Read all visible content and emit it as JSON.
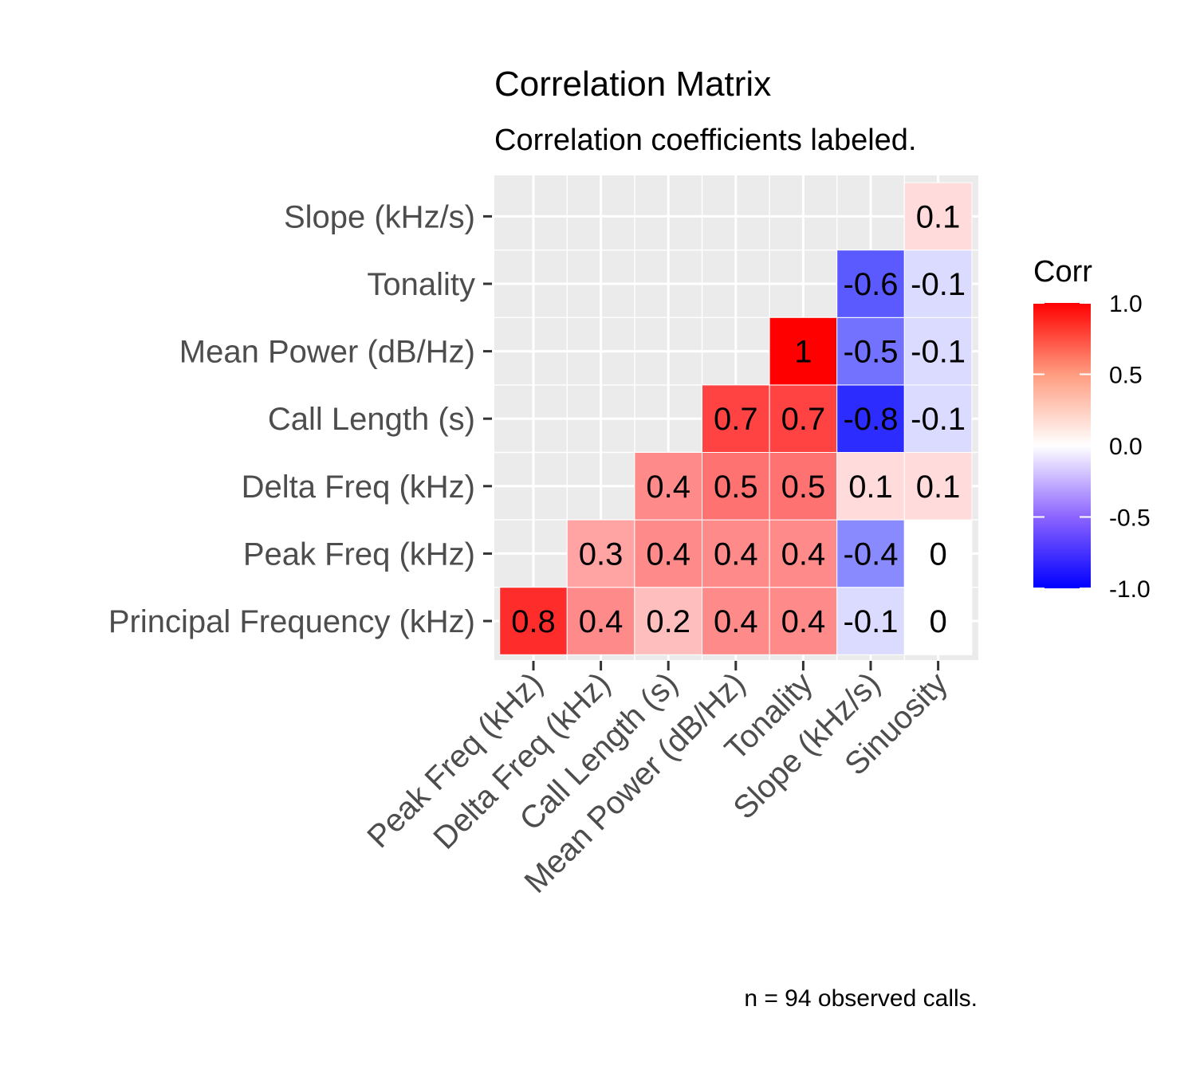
{
  "chart_data": {
    "type": "heatmap",
    "title": "Correlation Matrix",
    "subtitle": "Correlation coefficients labeled.",
    "caption": "n = 94 observed calls.",
    "x_categories": [
      "Peak Freq (kHz)",
      "Delta Freq (kHz)",
      "Call Length (s)",
      "Mean Power (dB/Hz)",
      "Tonality",
      "Slope (kHz/s)",
      "Sinuosity"
    ],
    "y_categories": [
      "Principal Frequency (kHz)",
      "Peak Freq (kHz)",
      "Delta Freq (kHz)",
      "Call Length (s)",
      "Mean Power (dB/Hz)",
      "Tonality",
      "Slope (kHz/s)"
    ],
    "cells": [
      {
        "x": "Peak Freq (kHz)",
        "y": "Principal Frequency (kHz)",
        "value": 0.8,
        "label": "0.8"
      },
      {
        "x": "Delta Freq (kHz)",
        "y": "Principal Frequency (kHz)",
        "value": 0.4,
        "label": "0.4"
      },
      {
        "x": "Call Length (s)",
        "y": "Principal Frequency (kHz)",
        "value": 0.2,
        "label": "0.2"
      },
      {
        "x": "Mean Power (dB/Hz)",
        "y": "Principal Frequency (kHz)",
        "value": 0.4,
        "label": "0.4"
      },
      {
        "x": "Tonality",
        "y": "Principal Frequency (kHz)",
        "value": 0.4,
        "label": "0.4"
      },
      {
        "x": "Slope (kHz/s)",
        "y": "Principal Frequency (kHz)",
        "value": -0.1,
        "label": "-0.1"
      },
      {
        "x": "Sinuosity",
        "y": "Principal Frequency (kHz)",
        "value": 0.0,
        "label": "0"
      },
      {
        "x": "Delta Freq (kHz)",
        "y": "Peak Freq (kHz)",
        "value": 0.3,
        "label": "0.3"
      },
      {
        "x": "Call Length (s)",
        "y": "Peak Freq (kHz)",
        "value": 0.4,
        "label": "0.4"
      },
      {
        "x": "Mean Power (dB/Hz)",
        "y": "Peak Freq (kHz)",
        "value": 0.4,
        "label": "0.4"
      },
      {
        "x": "Tonality",
        "y": "Peak Freq (kHz)",
        "value": 0.4,
        "label": "0.4"
      },
      {
        "x": "Slope (kHz/s)",
        "y": "Peak Freq (kHz)",
        "value": -0.4,
        "label": "-0.4"
      },
      {
        "x": "Sinuosity",
        "y": "Peak Freq (kHz)",
        "value": 0.0,
        "label": "0"
      },
      {
        "x": "Call Length (s)",
        "y": "Delta Freq (kHz)",
        "value": 0.4,
        "label": "0.4"
      },
      {
        "x": "Mean Power (dB/Hz)",
        "y": "Delta Freq (kHz)",
        "value": 0.5,
        "label": "0.5"
      },
      {
        "x": "Tonality",
        "y": "Delta Freq (kHz)",
        "value": 0.5,
        "label": "0.5"
      },
      {
        "x": "Slope (kHz/s)",
        "y": "Delta Freq (kHz)",
        "value": 0.1,
        "label": "0.1"
      },
      {
        "x": "Sinuosity",
        "y": "Delta Freq (kHz)",
        "value": 0.1,
        "label": "0.1"
      },
      {
        "x": "Mean Power (dB/Hz)",
        "y": "Call Length (s)",
        "value": 0.7,
        "label": "0.7"
      },
      {
        "x": "Tonality",
        "y": "Call Length (s)",
        "value": 0.7,
        "label": "0.7"
      },
      {
        "x": "Slope (kHz/s)",
        "y": "Call Length (s)",
        "value": -0.8,
        "label": "-0.8"
      },
      {
        "x": "Sinuosity",
        "y": "Call Length (s)",
        "value": -0.1,
        "label": "-0.1"
      },
      {
        "x": "Tonality",
        "y": "Mean Power (dB/Hz)",
        "value": 1.0,
        "label": "1"
      },
      {
        "x": "Slope (kHz/s)",
        "y": "Mean Power (dB/Hz)",
        "value": -0.5,
        "label": "-0.5"
      },
      {
        "x": "Sinuosity",
        "y": "Mean Power (dB/Hz)",
        "value": -0.1,
        "label": "-0.1"
      },
      {
        "x": "Slope (kHz/s)",
        "y": "Tonality",
        "value": -0.6,
        "label": "-0.6"
      },
      {
        "x": "Sinuosity",
        "y": "Tonality",
        "value": -0.1,
        "label": "-0.1"
      },
      {
        "x": "Sinuosity",
        "y": "Slope (kHz/s)",
        "value": 0.1,
        "label": "0.1"
      }
    ],
    "color_scale": {
      "low": "#0000FF",
      "mid": "#FFFFFF",
      "high": "#FF0000",
      "limits": [
        -1,
        1
      ]
    },
    "legend": {
      "title": "Corr",
      "position": "right",
      "ticks": [
        1.0,
        0.5,
        0.0,
        -0.5,
        -1.0
      ],
      "tick_labels": [
        "1.0",
        "0.5",
        "0.0",
        "-0.5",
        "-1.0"
      ]
    },
    "panel_background": "#EBEBEB",
    "grid": true
  }
}
